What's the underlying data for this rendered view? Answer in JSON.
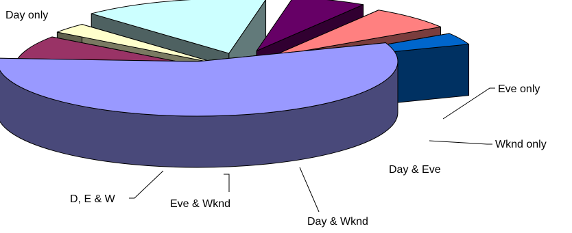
{
  "chart_data": {
    "type": "pie",
    "style": "3d-exploded",
    "title": "",
    "legend": "none",
    "slices": [
      {
        "label": "Day only",
        "value": 56.5,
        "color": "#9999ff"
      },
      {
        "label": "Eve only",
        "value": 9.0,
        "color": "#993366"
      },
      {
        "label": "Wknd only",
        "value": 3.0,
        "color": "#ffffcc"
      },
      {
        "label": "Day & Eve",
        "value": 15.0,
        "color": "#ccffff"
      },
      {
        "label": "Day & Wknd",
        "value": 6.0,
        "color": "#660066"
      },
      {
        "label": "Eve & Wknd",
        "value": 7.0,
        "color": "#ff8080"
      },
      {
        "label": "D, E & W",
        "value": 3.5,
        "color": "#0066cc"
      }
    ]
  }
}
